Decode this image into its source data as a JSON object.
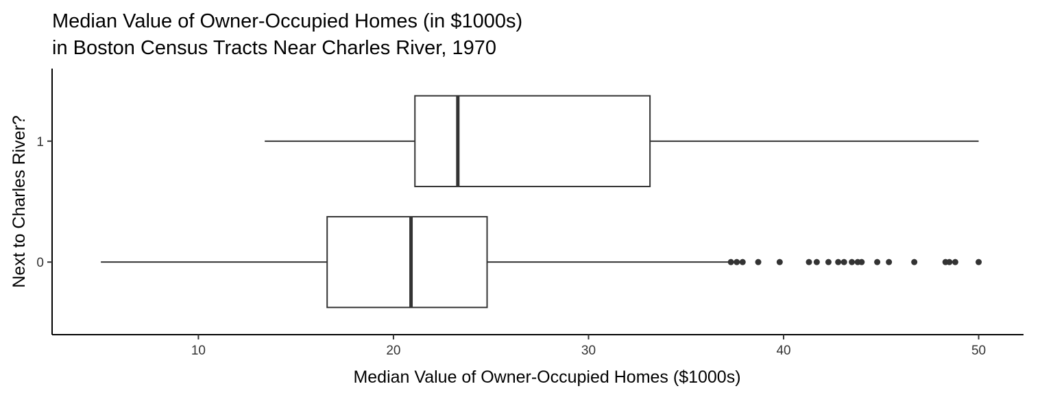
{
  "chart_data": {
    "type": "boxplot",
    "orientation": "horizontal",
    "title": [
      "Median Value of Owner-Occupied Homes (in $1000s)",
      "in Boston Census Tracts Near Charles River, 1970"
    ],
    "xlabel": "Median Value of Owner-Occupied Homes ($1000s)",
    "ylabel": "Next to Charles River?",
    "xlim": [
      2.5,
      52.3
    ],
    "x_ticks": [
      10,
      20,
      30,
      40,
      50
    ],
    "x_tick_labels": [
      "10",
      "20",
      "30",
      "40",
      "50"
    ],
    "categories": [
      "0",
      "1"
    ],
    "grid": false,
    "legend": "none",
    "colors": {
      "box_line": "#333333",
      "axis": "#000000",
      "tick_label": "#333333",
      "fill": "#ffffff"
    },
    "series": [
      {
        "category": "0",
        "whisker_low": 5.0,
        "q1": 16.6,
        "median": 20.9,
        "q3": 24.8,
        "whisker_high": 37.2,
        "outliers": [
          37.3,
          37.6,
          37.9,
          38.7,
          39.8,
          41.3,
          41.7,
          42.3,
          42.8,
          43.1,
          43.5,
          43.8,
          44.0,
          44.8,
          45.4,
          46.7,
          48.3,
          48.5,
          48.8,
          50.0
        ]
      },
      {
        "category": "1",
        "whisker_low": 13.4,
        "q1": 21.1,
        "median": 23.3,
        "q3": 33.15,
        "whisker_high": 50.0,
        "outliers": []
      }
    ]
  }
}
